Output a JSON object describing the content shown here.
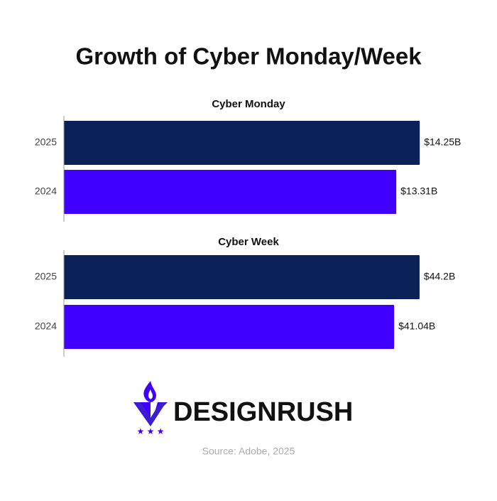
{
  "title": "Growth of Cyber Monday/Week",
  "chart_data": [
    {
      "type": "bar",
      "orientation": "horizontal",
      "title": "Cyber Monday",
      "categories": [
        "2025",
        "2024"
      ],
      "values": [
        14.25,
        13.31
      ],
      "value_labels": [
        "$14.25B",
        "$13.31B"
      ],
      "colors": [
        "#0b2259",
        "#4000ff"
      ],
      "xlim": [
        0,
        14.5
      ]
    },
    {
      "type": "bar",
      "orientation": "horizontal",
      "title": "Cyber Week",
      "categories": [
        "2025",
        "2024"
      ],
      "values": [
        44.2,
        41.04
      ],
      "value_labels": [
        "$44.2B",
        "$41.04B"
      ],
      "colors": [
        "#0b2259",
        "#4000ff"
      ],
      "xlim": [
        0,
        45
      ]
    }
  ],
  "brand": "DESIGNRUSH",
  "source": "Source: Adobe, 2025"
}
